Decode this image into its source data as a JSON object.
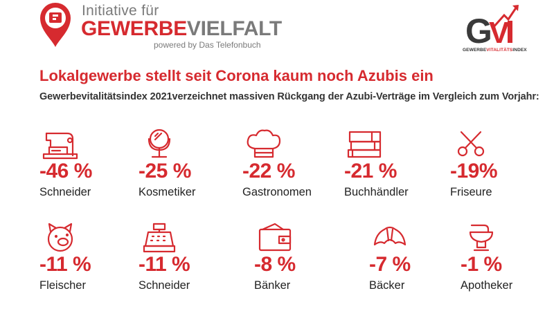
{
  "header": {
    "brand_line1": "Initiative für",
    "brand_red": "GEWERBE",
    "brand_grey": "VIELFALT",
    "powered_by": "powered by Das Telefonbuch",
    "index_logo_letters": "GVI",
    "index_sub_dark1": "GEWERBE",
    "index_sub_red": "VITALITÄTS",
    "index_sub_dark2": "INDEX"
  },
  "headline": "Lokalgewerbe stellt seit Corona kaum noch Azubis ein",
  "subheadline": "Gewerbevitalitätsindex 2021verzeichnet massiven Rückgang der Azubi-Verträge im Vergleich zum Vorjahr:",
  "stats": [
    {
      "pct": "-46 %",
      "label": "Schneider",
      "icon": "sewing-machine-icon"
    },
    {
      "pct": "-25 %",
      "label": "Kosmetiker",
      "icon": "mirror-icon"
    },
    {
      "pct": "-22 %",
      "label": "Gastronomen",
      "icon": "chef-hat-icon"
    },
    {
      "pct": "-21 %",
      "label": "Buchhändler",
      "icon": "books-icon"
    },
    {
      "pct": "-19%",
      "label": "Friseure",
      "icon": "scissors-icon"
    },
    {
      "pct": "-11 %",
      "label": "Fleischer",
      "icon": "pig-icon"
    },
    {
      "pct": "-11 %",
      "label": "Schneider",
      "icon": "cash-register-icon"
    },
    {
      "pct": "-8 %",
      "label": "Bänker",
      "icon": "wallet-icon"
    },
    {
      "pct": "-7 %",
      "label": "Bäcker",
      "icon": "croissant-icon"
    },
    {
      "pct": "-1 %",
      "label": "Apotheker",
      "icon": "mortar-pestle-icon"
    }
  ],
  "colors": {
    "accent": "#d62a2f",
    "grey": "#7a7a7a",
    "text": "#222222"
  }
}
